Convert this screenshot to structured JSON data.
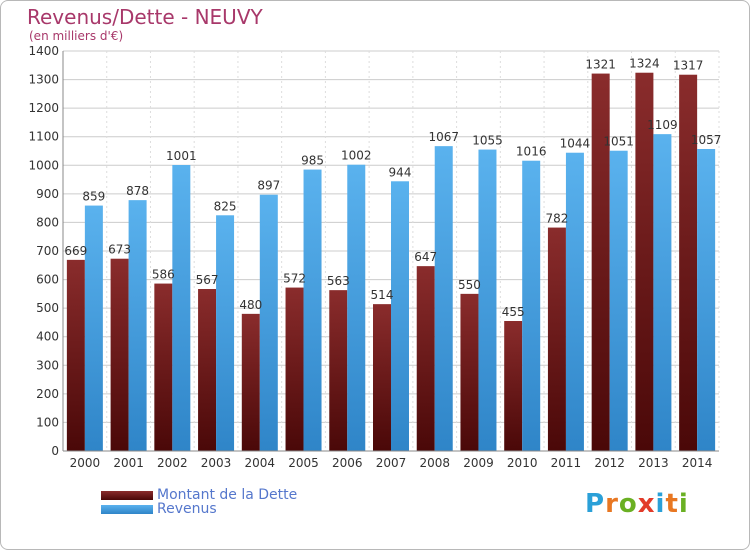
{
  "chart_data": {
    "type": "bar",
    "title": "Revenus/Dette - NEUVY",
    "subtitle": "(en milliers d'€)",
    "categories": [
      "2000",
      "2001",
      "2002",
      "2003",
      "2004",
      "2005",
      "2006",
      "2007",
      "2008",
      "2009",
      "2010",
      "2011",
      "2012",
      "2013",
      "2014"
    ],
    "series": [
      {
        "name": "Montant de la Dette",
        "color": "#7a2323",
        "values": [
          669,
          673,
          586,
          567,
          480,
          572,
          563,
          514,
          647,
          550,
          455,
          782,
          1321,
          1324,
          1317
        ]
      },
      {
        "name": "Revenus",
        "color": "#4aa6e6",
        "values": [
          859,
          878,
          1001,
          825,
          897,
          985,
          1002,
          944,
          1067,
          1055,
          1016,
          1044,
          1051,
          1109,
          1057
        ]
      }
    ],
    "ylim": [
      0,
      1400
    ],
    "yticks": [
      0,
      100,
      200,
      300,
      400,
      500,
      600,
      700,
      800,
      900,
      1000,
      1100,
      1200,
      1300,
      1400
    ],
    "grid": true,
    "legend_position": "bottom-left"
  },
  "logo": {
    "text": "Proxiti",
    "letters": [
      "P",
      "r",
      "o",
      "x",
      "i",
      "t",
      "i"
    ],
    "colors": [
      "#2aa0d8",
      "#e87722",
      "#6ab023",
      "#e23b2a",
      "#2aa0d8",
      "#e87722",
      "#6ab023"
    ]
  }
}
